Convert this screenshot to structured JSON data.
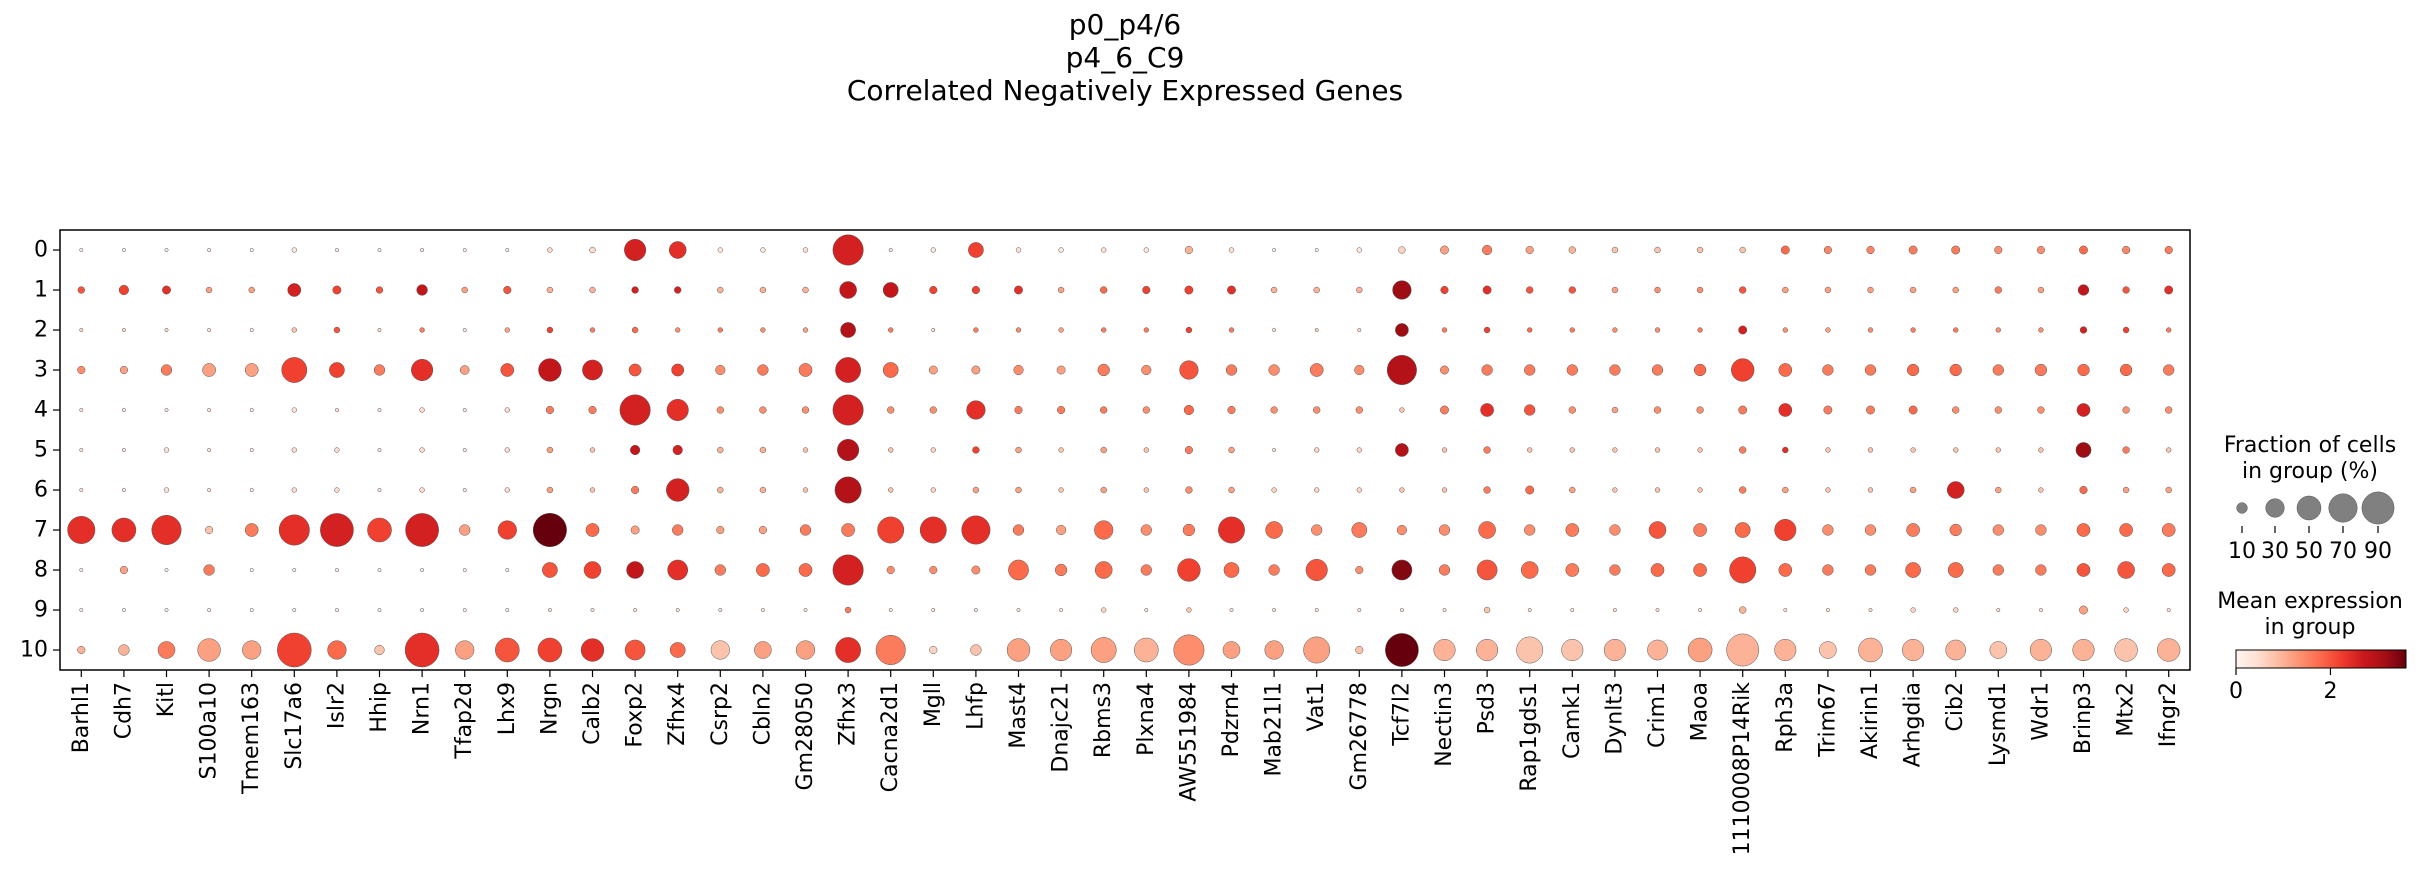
{
  "chart_data": {
    "type": "dotplot",
    "title_lines": [
      "p0_p4/6",
      "p4_6_C9",
      "Correlated Negatively Expressed Genes"
    ],
    "genes": [
      "Barhl1",
      "Cdh7",
      "Kitl",
      "S100a10",
      "Tmem163",
      "Slc17a6",
      "Islr2",
      "Hhip",
      "Nrn1",
      "Tfap2d",
      "Lhx9",
      "Nrgn",
      "Calb2",
      "Foxp2",
      "Zfhx4",
      "Csrp2",
      "Cbln2",
      "Gm28050",
      "Zfhx3",
      "Cacna2d1",
      "Mgll",
      "Lhfp",
      "Mast4",
      "Dnajc21",
      "Rbms3",
      "Plxna4",
      "AW551984",
      "Pdzrn4",
      "Mab21l1",
      "Vat1",
      "Gm26778",
      "Tcf7l2",
      "Nectin3",
      "Psd3",
      "Rap1gds1",
      "Camk1",
      "Dynlt3",
      "Crim1",
      "Maoa",
      "1110008P14Rik",
      "Rph3a",
      "Trim67",
      "Akirin1",
      "Arhgdia",
      "Cib2",
      "Lysmd1",
      "Wdr1",
      "Brinp3",
      "Mtx2",
      "Ifngr2"
    ],
    "groups": [
      "0",
      "1",
      "2",
      "3",
      "4",
      "5",
      "6",
      "7",
      "8",
      "9",
      "10"
    ],
    "size_legend": {
      "title_lines": [
        "Fraction of cells",
        "in group (%)"
      ],
      "values": [
        10,
        30,
        50,
        70,
        90
      ]
    },
    "color_legend": {
      "title_lines": [
        "Mean expression",
        "in group"
      ],
      "range": [
        0,
        3.6
      ],
      "ticks": [
        0,
        2
      ],
      "colormap": "Reds"
    },
    "fraction": [
      [
        1,
        1,
        1,
        1,
        1,
        2,
        1,
        1,
        1,
        1,
        1,
        2,
        3,
        40,
        25,
        2,
        2,
        2,
        80,
        1,
        2,
        20,
        2,
        2,
        2,
        2,
        5,
        2,
        1,
        1,
        2,
        4,
        6,
        8,
        5,
        4,
        3,
        3,
        3,
        3,
        6,
        5,
        5,
        6,
        6,
        5,
        5,
        6,
        5,
        5
      ],
      [
        4,
        8,
        6,
        3,
        3,
        15,
        6,
        4,
        10,
        3,
        5,
        3,
        3,
        4,
        4,
        3,
        3,
        3,
        25,
        20,
        5,
        5,
        6,
        3,
        4,
        5,
        6,
        6,
        3,
        3,
        3,
        30,
        5,
        6,
        4,
        4,
        3,
        3,
        3,
        4,
        3,
        3,
        3,
        3,
        3,
        4,
        3,
        10,
        4,
        6
      ],
      [
        1,
        1,
        1,
        1,
        1,
        2,
        3,
        1,
        2,
        1,
        2,
        3,
        2,
        3,
        2,
        2,
        2,
        2,
        20,
        2,
        1,
        2,
        2,
        2,
        2,
        2,
        3,
        2,
        1,
        1,
        1,
        15,
        2,
        3,
        2,
        2,
        2,
        2,
        2,
        6,
        2,
        2,
        2,
        2,
        2,
        2,
        2,
        4,
        3,
        2
      ],
      [
        5,
        5,
        10,
        15,
        15,
        55,
        20,
        10,
        40,
        7,
        15,
        45,
        35,
        13,
        13,
        8,
        10,
        15,
        55,
        20,
        6,
        6,
        8,
        6,
        12,
        8,
        30,
        10,
        10,
        15,
        8,
        75,
        6,
        10,
        10,
        10,
        10,
        10,
        12,
        45,
        15,
        10,
        10,
        12,
        12,
        10,
        12,
        12,
        12,
        10
      ],
      [
        1,
        1,
        1,
        1,
        1,
        2,
        1,
        1,
        2,
        1,
        2,
        5,
        5,
        80,
        40,
        4,
        4,
        4,
        80,
        4,
        4,
        30,
        5,
        5,
        4,
        4,
        8,
        5,
        4,
        4,
        4,
        2,
        6,
        15,
        10,
        4,
        3,
        4,
        4,
        6,
        15,
        6,
        6,
        6,
        4,
        4,
        4,
        15,
        4,
        4
      ],
      [
        1,
        1,
        2,
        1,
        1,
        2,
        2,
        1,
        2,
        1,
        2,
        3,
        2,
        8,
        8,
        3,
        3,
        2,
        40,
        2,
        2,
        4,
        3,
        2,
        3,
        2,
        5,
        3,
        1,
        2,
        2,
        15,
        2,
        4,
        2,
        2,
        2,
        2,
        2,
        4,
        3,
        2,
        2,
        2,
        2,
        2,
        2,
        20,
        4,
        2
      ],
      [
        1,
        1,
        2,
        1,
        1,
        2,
        2,
        1,
        2,
        1,
        2,
        3,
        2,
        5,
        45,
        3,
        3,
        2,
        60,
        2,
        2,
        3,
        3,
        2,
        3,
        2,
        4,
        3,
        2,
        2,
        2,
        2,
        2,
        4,
        6,
        3,
        2,
        2,
        2,
        4,
        3,
        2,
        2,
        3,
        25,
        3,
        2,
        5,
        3,
        3
      ],
      [
        65,
        50,
        75,
        5,
        15,
        80,
        95,
        50,
        95,
        10,
        30,
        97,
        15,
        6,
        10,
        5,
        5,
        10,
        15,
        60,
        60,
        70,
        10,
        8,
        30,
        10,
        12,
        60,
        25,
        10,
        20,
        8,
        10,
        25,
        10,
        15,
        10,
        25,
        15,
        20,
        40,
        10,
        10,
        15,
        12,
        10,
        10,
        15,
        15,
        15
      ],
      [
        1,
        5,
        1,
        10,
        1,
        1,
        1,
        1,
        1,
        1,
        1,
        20,
        25,
        25,
        35,
        10,
        15,
        15,
        80,
        5,
        5,
        6,
        35,
        12,
        25,
        10,
        45,
        20,
        10,
        40,
        5,
        35,
        10,
        35,
        25,
        15,
        10,
        15,
        15,
        60,
        15,
        10,
        10,
        20,
        20,
        10,
        10,
        15,
        25,
        15
      ],
      [
        1,
        1,
        1,
        1,
        1,
        1,
        1,
        1,
        1,
        1,
        1,
        1,
        1,
        1,
        1,
        1,
        1,
        1,
        3,
        1,
        1,
        1,
        1,
        1,
        2,
        1,
        2,
        1,
        1,
        1,
        1,
        1,
        1,
        3,
        1,
        1,
        1,
        1,
        1,
        4,
        1,
        1,
        1,
        2,
        2,
        1,
        1,
        6,
        2,
        1
      ],
      [
        5,
        10,
        25,
        45,
        30,
        100,
        30,
        8,
        100,
        30,
        50,
        50,
        45,
        35,
        20,
        30,
        25,
        30,
        55,
        75,
        5,
        10,
        45,
        40,
        55,
        50,
        80,
        25,
        30,
        60,
        5,
        95,
        40,
        40,
        60,
        40,
        40,
        35,
        50,
        90,
        40,
        25,
        50,
        40,
        35,
        25,
        40,
        40,
        45,
        45
      ]
    ],
    "expression": [
      [
        0.2,
        0.2,
        0.2,
        0.2,
        0.2,
        0.3,
        0.2,
        0.2,
        0.3,
        0.2,
        0.2,
        0.5,
        0.5,
        2.6,
        2.4,
        0.3,
        0.3,
        0.4,
        2.6,
        0.3,
        0.3,
        2.2,
        0.4,
        0.3,
        0.4,
        0.3,
        1.0,
        0.4,
        0.2,
        0.2,
        0.3,
        0.6,
        1.2,
        1.6,
        1.2,
        1.0,
        0.8,
        0.8,
        0.8,
        0.8,
        1.8,
        1.5,
        1.5,
        1.6,
        1.6,
        1.4,
        1.4,
        1.8,
        1.5,
        1.6
      ],
      [
        2.0,
        2.2,
        2.4,
        1.2,
        1.2,
        2.6,
        2.2,
        2.0,
        2.8,
        1.2,
        2.0,
        1.0,
        1.0,
        2.6,
        2.6,
        1.0,
        1.0,
        1.0,
        2.8,
        2.8,
        2.2,
        2.2,
        2.4,
        1.2,
        1.8,
        2.2,
        2.2,
        2.4,
        1.0,
        1.0,
        1.0,
        3.2,
        2.2,
        2.4,
        2.0,
        2.0,
        1.2,
        1.4,
        1.4,
        2.0,
        1.2,
        1.2,
        1.2,
        1.2,
        1.2,
        1.6,
        1.2,
        2.8,
        2.0,
        2.4
      ],
      [
        0.5,
        0.5,
        0.5,
        0.3,
        0.3,
        0.8,
        2.0,
        0.5,
        1.6,
        0.3,
        1.2,
        2.2,
        1.6,
        1.8,
        1.4,
        1.6,
        1.4,
        1.2,
        3.0,
        1.6,
        0.5,
        1.6,
        1.4,
        1.2,
        1.6,
        1.6,
        2.2,
        1.6,
        0.4,
        0.6,
        0.5,
        3.2,
        1.6,
        2.2,
        1.8,
        1.6,
        1.4,
        1.4,
        1.6,
        2.6,
        1.4,
        1.2,
        1.4,
        1.6,
        1.6,
        1.4,
        1.4,
        2.6,
        2.2,
        1.6
      ],
      [
        1.4,
        1.2,
        1.6,
        1.2,
        1.2,
        2.2,
        2.2,
        1.6,
        2.4,
        1.2,
        2.0,
        2.8,
        2.6,
        2.0,
        2.2,
        1.4,
        1.6,
        1.6,
        2.6,
        1.8,
        1.2,
        1.2,
        1.4,
        1.2,
        1.6,
        1.4,
        2.0,
        1.6,
        1.4,
        1.6,
        1.4,
        3.0,
        1.4,
        1.6,
        1.6,
        1.6,
        1.6,
        1.6,
        1.8,
        2.2,
        1.8,
        1.6,
        1.6,
        1.8,
        1.8,
        1.6,
        1.6,
        1.8,
        1.8,
        1.6
      ],
      [
        0.3,
        0.3,
        0.3,
        0.3,
        0.3,
        0.4,
        0.4,
        0.3,
        0.5,
        0.3,
        0.5,
        1.6,
        1.6,
        2.6,
        2.4,
        1.4,
        1.4,
        1.4,
        2.6,
        1.4,
        1.4,
        2.4,
        1.6,
        1.6,
        1.6,
        1.4,
        1.8,
        1.6,
        1.4,
        1.4,
        1.4,
        0.8,
        1.6,
        2.4,
        2.0,
        1.4,
        1.2,
        1.4,
        1.4,
        1.6,
        2.4,
        1.6,
        1.6,
        1.8,
        1.4,
        1.4,
        1.4,
        2.6,
        1.4,
        1.4
      ],
      [
        0.3,
        0.3,
        0.4,
        0.3,
        0.3,
        0.5,
        0.5,
        0.3,
        0.5,
        0.3,
        0.5,
        1.2,
        0.8,
        2.8,
        2.6,
        1.0,
        1.0,
        0.8,
        3.0,
        0.8,
        0.6,
        2.2,
        1.2,
        0.8,
        1.2,
        0.8,
        1.6,
        1.2,
        0.4,
        0.6,
        0.6,
        3.0,
        0.8,
        1.6,
        0.8,
        0.8,
        0.8,
        0.8,
        0.8,
        1.6,
        2.4,
        0.8,
        0.8,
        0.8,
        0.8,
        0.8,
        0.8,
        3.2,
        1.6,
        0.8
      ],
      [
        0.3,
        0.3,
        0.4,
        0.3,
        0.3,
        0.5,
        0.5,
        0.3,
        0.5,
        0.3,
        0.5,
        1.2,
        0.8,
        1.6,
        2.6,
        1.0,
        1.0,
        0.8,
        3.0,
        0.8,
        0.6,
        1.2,
        1.2,
        0.8,
        1.2,
        0.8,
        1.4,
        1.2,
        0.6,
        0.6,
        0.6,
        0.8,
        0.8,
        1.6,
        1.8,
        1.2,
        0.8,
        0.8,
        0.8,
        1.6,
        1.2,
        0.8,
        0.8,
        1.2,
        2.6,
        1.2,
        0.8,
        1.8,
        1.2,
        1.2
      ],
      [
        2.4,
        2.4,
        2.4,
        0.8,
        1.6,
        2.4,
        2.6,
        2.2,
        2.6,
        1.2,
        2.2,
        3.6,
        1.8,
        1.2,
        1.6,
        1.2,
        1.2,
        1.6,
        1.6,
        2.2,
        2.4,
        2.4,
        1.6,
        1.2,
        1.8,
        1.4,
        1.6,
        2.4,
        1.8,
        1.4,
        1.6,
        1.4,
        1.4,
        1.8,
        1.4,
        1.6,
        1.4,
        2.0,
        1.6,
        1.8,
        2.2,
        1.4,
        1.4,
        1.6,
        1.6,
        1.4,
        1.4,
        1.8,
        1.8,
        1.6
      ],
      [
        0.2,
        1.2,
        0.2,
        1.6,
        0.2,
        0.2,
        0.2,
        0.2,
        0.2,
        0.2,
        0.2,
        2.0,
        2.2,
        2.8,
        2.4,
        1.6,
        1.8,
        1.8,
        2.6,
        1.4,
        1.4,
        1.4,
        1.8,
        1.6,
        1.8,
        1.6,
        2.2,
        1.8,
        1.6,
        2.0,
        1.4,
        3.4,
        1.6,
        2.0,
        1.8,
        1.6,
        1.6,
        1.8,
        1.8,
        2.2,
        1.8,
        1.6,
        1.6,
        1.8,
        1.8,
        1.6,
        1.6,
        2.0,
        2.0,
        1.8
      ],
      [
        0.2,
        0.2,
        0.2,
        0.2,
        0.2,
        0.2,
        0.2,
        0.2,
        0.2,
        0.2,
        0.2,
        0.4,
        0.4,
        0.4,
        0.4,
        0.4,
        0.4,
        0.4,
        1.6,
        0.4,
        0.4,
        0.4,
        0.4,
        0.4,
        0.6,
        0.4,
        0.8,
        0.4,
        0.4,
        0.4,
        0.4,
        0.4,
        0.4,
        0.8,
        0.4,
        0.4,
        0.4,
        0.4,
        0.4,
        1.0,
        0.4,
        0.4,
        0.4,
        0.6,
        0.6,
        0.4,
        0.4,
        1.2,
        0.6,
        0.4
      ],
      [
        1.0,
        1.0,
        1.6,
        1.2,
        1.2,
        2.2,
        1.8,
        0.8,
        2.4,
        1.2,
        2.0,
        2.2,
        2.4,
        2.0,
        1.8,
        0.8,
        1.2,
        1.2,
        2.4,
        1.6,
        0.6,
        0.8,
        1.2,
        1.2,
        1.2,
        1.0,
        1.4,
        1.2,
        1.2,
        1.2,
        0.8,
        3.6,
        1.0,
        1.0,
        0.8,
        0.8,
        1.0,
        1.0,
        1.2,
        1.0,
        1.0,
        0.8,
        1.0,
        1.0,
        1.0,
        0.8,
        1.0,
        1.0,
        0.8,
        1.0
      ]
    ]
  }
}
